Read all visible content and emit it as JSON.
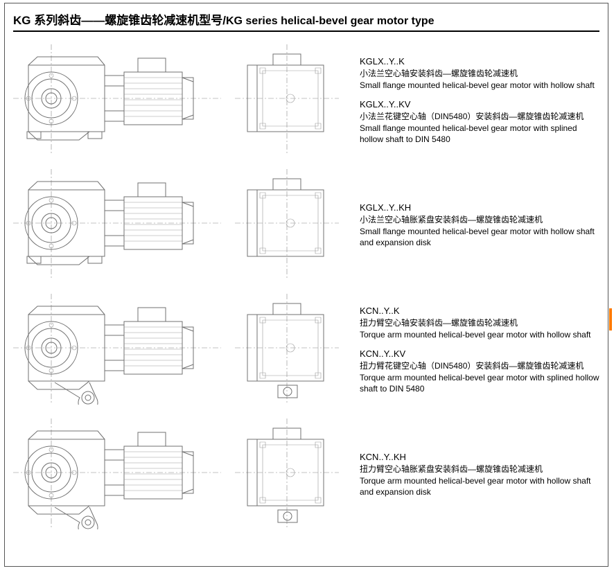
{
  "title": {
    "cn": "KG 系列斜齿——螺旋锥齿轮减速机型号/",
    "en": "KG series helical-bevel gear motor type"
  },
  "rows": [
    {
      "has_arm": false,
      "groups": [
        {
          "model": "KGLX..Y..K",
          "cn": "小法兰空心轴安装斜齿—螺旋锥齿轮减速机",
          "en": "Small flange mounted  helical-bevel gear motor with hollow shaft"
        },
        {
          "model": "KGLX..Y..KV",
          "cn": "小法兰花键空心轴（DIN5480）安装斜齿—螺旋锥齿轮减速机",
          "en": "Small flange mounted  helical-bevel gear motor with splined hollow shaft to DIN 5480"
        }
      ]
    },
    {
      "has_arm": false,
      "groups": [
        {
          "model": "KGLX..Y..KH",
          "cn": "小法兰空心轴胀紧盘安装斜齿—螺旋锥齿轮减速机",
          "en": "Small flange mounted  helical-bevel gear motor with hollow shaft and expansion disk"
        }
      ]
    },
    {
      "has_arm": true,
      "groups": [
        {
          "model": "KCN..Y..K",
          "cn": "扭力臂空心轴安装斜齿—螺旋锥齿轮减速机",
          "en": "Torque arm mounted  helical-bevel gear motor with hollow shaft"
        },
        {
          "model": "KCN..Y..KV",
          "cn": "扭力臂花键空心轴（DIN5480）安装斜齿—螺旋锥齿轮减速机",
          "en": "Torque arm mounted  helical-bevel gear motor with splined hollow shaft to DIN 5480"
        }
      ]
    },
    {
      "has_arm": true,
      "groups": [
        {
          "model": "KCN..Y..KH",
          "cn": "扭力臂空心轴胀紧盘安装斜齿—螺旋锥齿轮减速机",
          "en": "Torque arm mounted  helical-bevel gear motor with hollow shaft and expansion disk"
        }
      ]
    }
  ],
  "colors": {
    "stroke": "#707070",
    "accent": "#ff7a00",
    "text": "#000000",
    "bg": "#ffffff"
  }
}
